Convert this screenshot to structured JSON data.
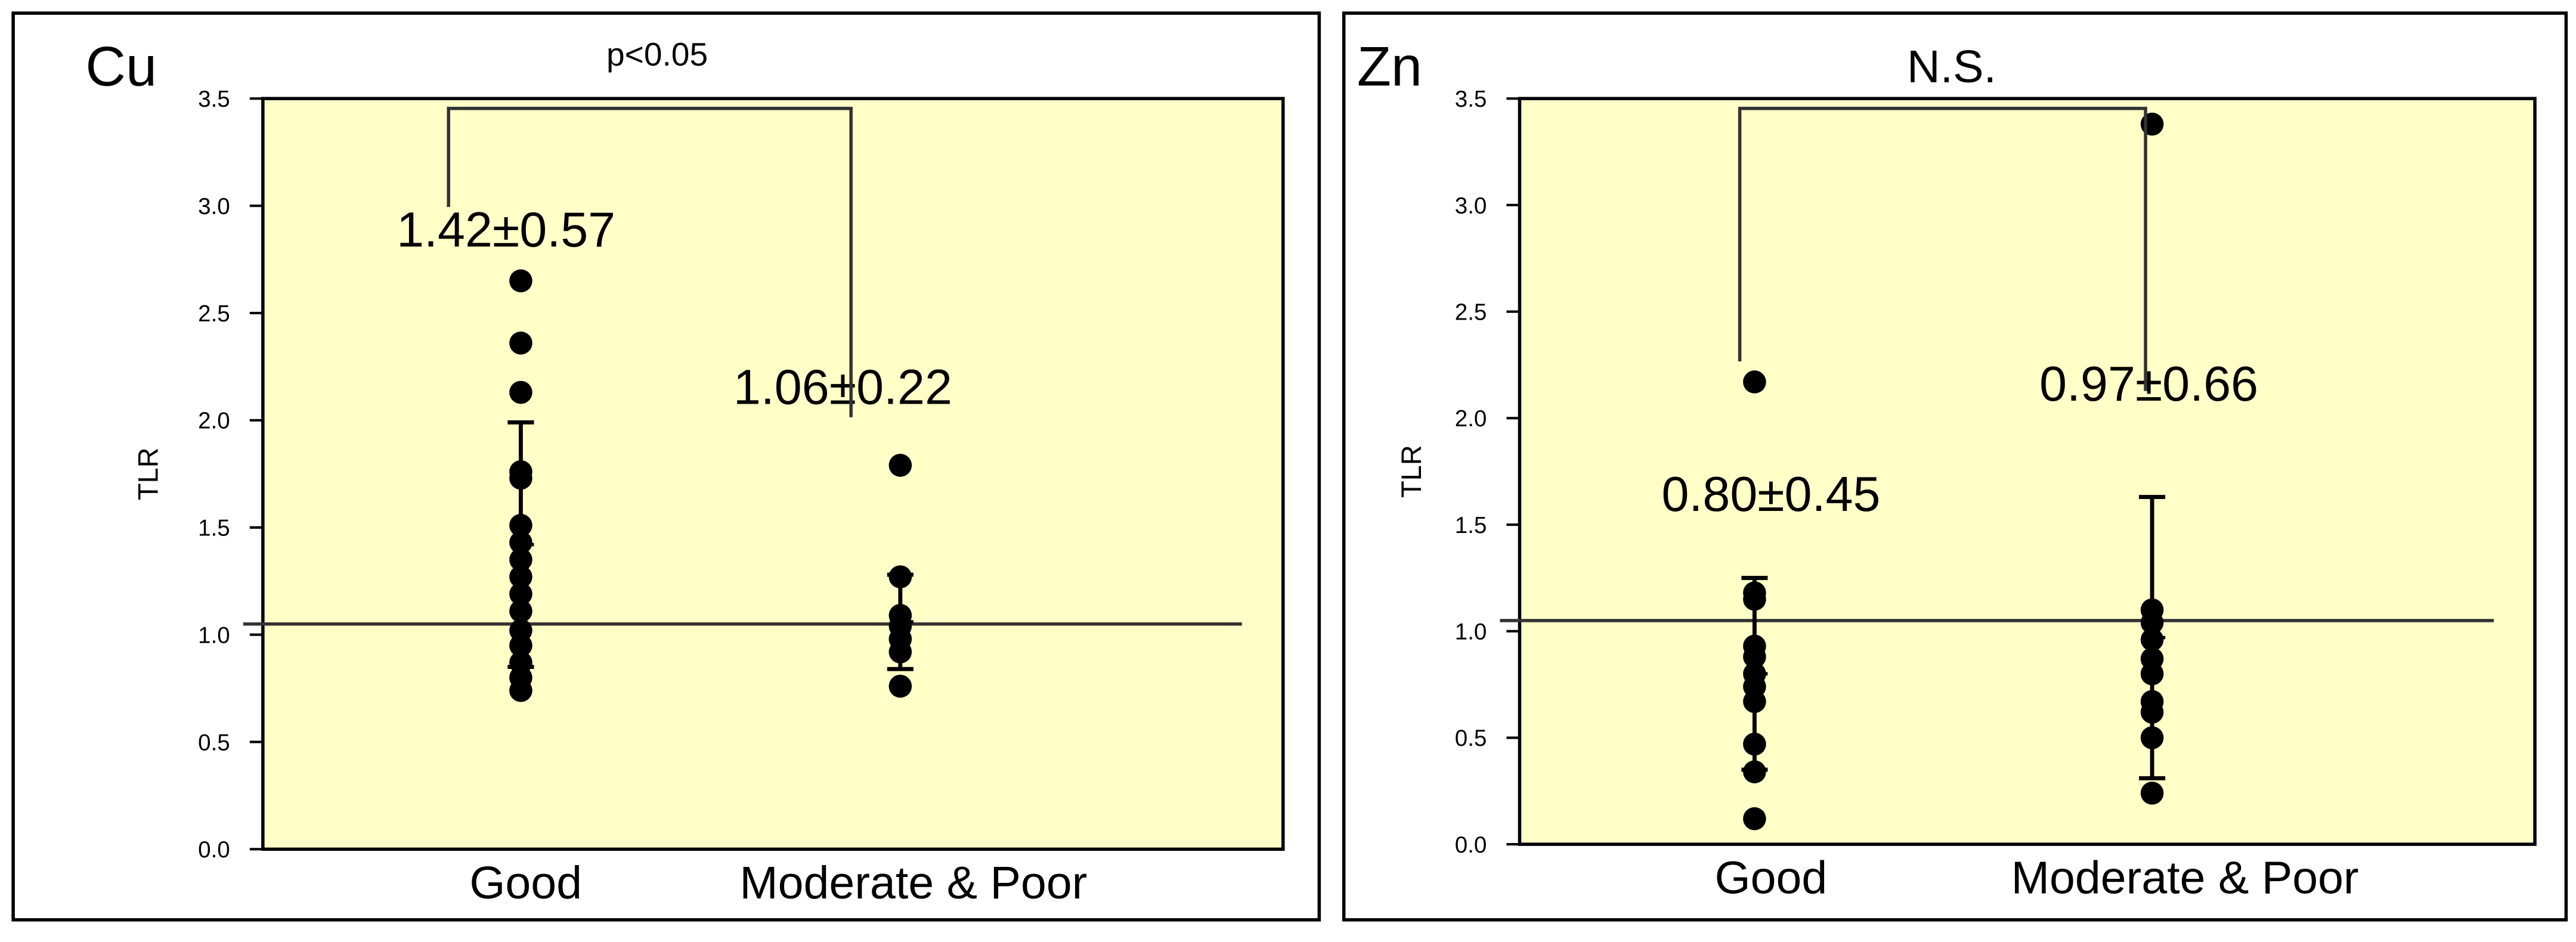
{
  "chart_data": [
    {
      "type": "strip",
      "title": "Cu",
      "annotation": "p<0.05",
      "y_label": "TLR",
      "categories": [
        "Good",
        "Moderate & Poor"
      ],
      "points": [
        [
          2.65,
          2.36,
          2.13,
          1.76,
          1.73,
          1.51,
          1.43,
          1.35,
          1.27,
          1.19,
          1.11,
          1.02,
          0.95,
          0.87,
          0.8,
          0.74
        ],
        [
          1.79,
          1.27,
          1.09,
          1.04,
          0.98,
          0.92,
          0.76
        ]
      ],
      "means": [
        1.42,
        1.06
      ],
      "sds": [
        0.57,
        0.22
      ],
      "mean_labels": [
        "1.42±0.57",
        "1.06±0.22"
      ],
      "reference_line": 1.05,
      "color": "#000000",
      "background": "#ffffc8",
      "ylim": [
        0,
        3.5
      ],
      "yticks": [
        {
          "value": 0,
          "label": "0.0"
        },
        0.5,
        {
          "value": 1,
          "label": "1.0"
        },
        1.5,
        {
          "value": 2,
          "label": "2.0"
        },
        2.5,
        {
          "value": 3,
          "label": "3.0"
        },
        3.5
      ]
    },
    {
      "type": "strip",
      "title": "Zn",
      "annotation": "N.S.",
      "y_label": "TLR",
      "categories": [
        "Good",
        "Moderate & Poor"
      ],
      "points": [
        [
          2.17,
          1.18,
          1.15,
          0.93,
          0.88,
          0.8,
          0.74,
          0.67,
          0.47,
          0.34,
          0.12
        ],
        [
          3.38,
          1.1,
          1.04,
          0.96,
          0.87,
          0.8,
          0.67,
          0.62,
          0.5,
          0.24
        ]
      ],
      "means": [
        0.8,
        0.97
      ],
      "sds": [
        0.45,
        0.66
      ],
      "mean_labels": [
        "0.80±0.45",
        "0.97±0.66"
      ],
      "reference_line": 1.05,
      "color": "#000000",
      "background": "#ffffc8",
      "ylim": [
        0,
        3.5
      ],
      "yticks": [
        {
          "value": 0,
          "label": "0.0"
        },
        0.5,
        {
          "value": 1,
          "label": "1.0"
        },
        1.5,
        {
          "value": 2,
          "label": "2.0"
        },
        2.5,
        {
          "value": 3,
          "label": "3.0"
        },
        3.5
      ]
    }
  ]
}
